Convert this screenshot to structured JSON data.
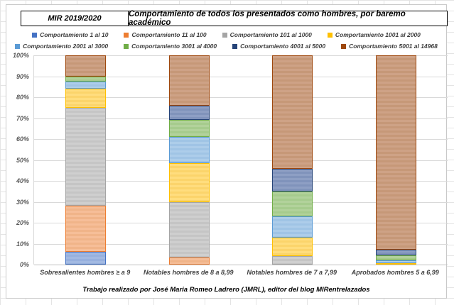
{
  "chart": {
    "label_box": "MIR 2019/2020",
    "footer": "Trabajo realizado por José Maria Romeo Ladrero (JMRL), editor del blog MIRentrelazados"
  },
  "chart_data": {
    "type": "bar",
    "stacked": true,
    "percent_stacked": true,
    "title": "Comportamiento de todos los presentados como hombres, por baremo académico",
    "xlabel": "",
    "ylabel": "",
    "ylim": [
      0,
      100
    ],
    "grid": true,
    "legend_position": "top",
    "y_ticks": [
      "100%",
      "90%",
      "80%",
      "70%",
      "60%",
      "50%",
      "40%",
      "30%",
      "20%",
      "10%",
      "0%"
    ],
    "categories": [
      "Sobresalientes hombres ≥ a 9",
      "Notables hombres de 8 a 8,99",
      "Notables hombres de 7 a 7,99",
      "Aprobados hombres 5 a 6,99"
    ],
    "series": [
      {
        "name": "Comportamiento 1 al 10",
        "color": "#4472C4",
        "fill": "#A2B9E2",
        "stripe": "#97B0DD",
        "values": [
          6,
          0,
          0,
          0
        ]
      },
      {
        "name": "Comportamiento 11 al 100",
        "color": "#ED7D31",
        "fill": "#F6BE98",
        "stripe": "#F0B489",
        "values": [
          22,
          3.4,
          0,
          0
        ]
      },
      {
        "name": "Comportamiento 101 al 1000",
        "color": "#A5A5A5",
        "fill": "#CFCFCF",
        "stripe": "#C5C5C5",
        "values": [
          47,
          26.6,
          4,
          0
        ]
      },
      {
        "name": "Comportamiento 1001 al 2000",
        "color": "#FFC000",
        "fill": "#FFDD7E",
        "stripe": "#FBD46B",
        "values": [
          9,
          18.6,
          9,
          0.7
        ]
      },
      {
        "name": "Comportamiento 2001 al 3000",
        "color": "#5B9BD5",
        "fill": "#ADCDEA",
        "stripe": "#A0C4E5",
        "values": [
          3.5,
          12.4,
          10.2,
          1.2
        ]
      },
      {
        "name": "Comportamiento 3001 al 4000",
        "color": "#70AD47",
        "fill": "#B2D29B",
        "stripe": "#A6CB8D",
        "values": [
          2.3,
          8,
          11.8,
          2.5
        ]
      },
      {
        "name": "Comportamiento 4001 al 5000",
        "color": "#264478",
        "fill": "#8E9FC4",
        "stripe": "#8093BB",
        "values": [
          0,
          6.8,
          10.7,
          2.8
        ]
      },
      {
        "name": "Comportamiento 5001 al 14968",
        "color": "#9E480E",
        "fill": "#CEA286",
        "stripe": "#C69878",
        "values": [
          10.2,
          24.2,
          54.3,
          92.8
        ]
      }
    ]
  }
}
